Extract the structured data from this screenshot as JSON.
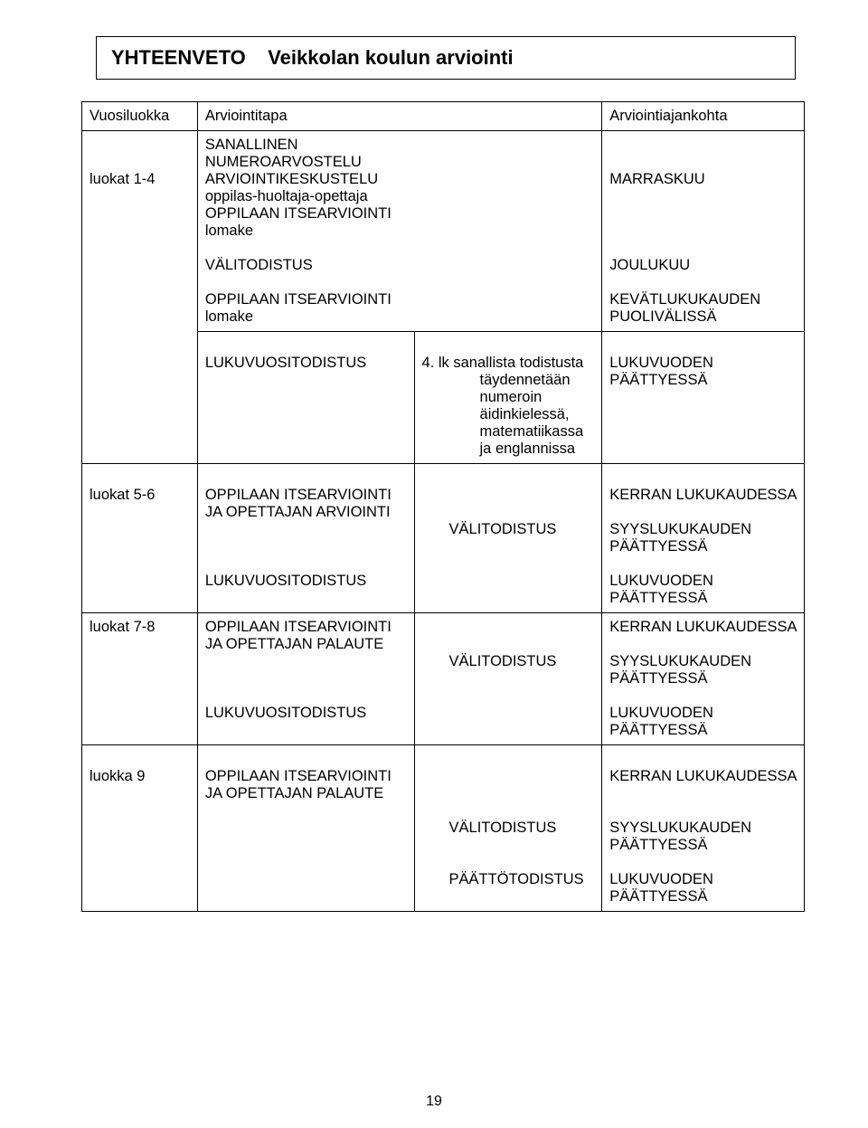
{
  "page": {
    "title_a": "YHTEENVETO",
    "title_b": "Veikkolan koulun arviointi",
    "page_number": "19"
  },
  "header": {
    "col1": "Vuosiluokka",
    "col2": "Arviointitapa",
    "col3": "Arviointiajankohta"
  },
  "r1": {
    "grade": "luokat 1-4",
    "c1_l1": "SANALLINEN",
    "c1_l2": "NUMEROARVOSTELU",
    "c1_l3": "ARVIOINTIKESKUSTELU",
    "c1_l4": "oppilas-huoltaja-opettaja",
    "c1_l5": "OPPILAAN ITSEARVIOINTI",
    "c1_l6": "lomake",
    "c1_l7": "VÄLITODISTUS",
    "c1_l8": "OPPILAAN ITSEARVIOINTI",
    "c1_l9": "lomake",
    "t1": "MARRASKUU",
    "t2": "JOULUKUU",
    "t3a": "KEVÄTLUKUKAUDEN",
    "t3b": "PUOLIVÄLISSÄ"
  },
  "r1b": {
    "c1": "LUKUVUOSITODISTUS",
    "mid_l1": "4. lk sanallista todistusta",
    "mid_l2": "täydennetään",
    "mid_l3": "numeroin",
    "mid_l4": "äidinkielessä,",
    "mid_l5": " matematiikassa",
    "mid_l6": "ja englannissa",
    "t1a": "LUKUVUODEN",
    "t1b": "PÄÄTTYESSÄ"
  },
  "r2": {
    "grade": "luokat 5-6",
    "c1_l1": "OPPILAAN ITSEARVIOINTI",
    "c1_l2": " JA OPETTAJAN ARVIOINTI",
    "mid": "VÄLITODISTUS",
    "t1": "KERRAN LUKUKAUDESSA",
    "t2a": "SYYSLUKUKAUDEN",
    "t2b": "PÄÄTTYESSÄ",
    "c1_l3": "LUKUVUOSITODISTUS",
    "t3a": "LUKUVUODEN",
    "t3b": "PÄÄTTYESSÄ"
  },
  "r3": {
    "grade": "luokat 7-8",
    "c1_l1": "OPPILAAN ITSEARVIOINTI",
    "c1_l2": "JA OPETTAJAN PALAUTE",
    "mid": "VÄLITODISTUS",
    "t1": "KERRAN LUKUKAUDESSA",
    "t2a": "SYYSLUKUKAUDEN",
    "t2b": "PÄÄTTYESSÄ",
    "c1_l3": "LUKUVUOSITODISTUS",
    "t3a": "LUKUVUODEN",
    "t3b": "PÄÄTTYESSÄ"
  },
  "r4": {
    "grade": "luokka  9",
    "c1_l1": "OPPILAAN ITSEARVIOINTI",
    "c1_l2": "JA OPETTAJAN PALAUTE",
    "mid1": "VÄLITODISTUS",
    "mid2": "PÄÄTTÖTODISTUS",
    "t1": "KERRAN LUKUKAUDESSA",
    "t2a": "SYYSLUKUKAUDEN",
    "t2b": "PÄÄTTYESSÄ",
    "t3a": "LUKUVUODEN",
    "t3b": "PÄÄTTYESSÄ"
  }
}
